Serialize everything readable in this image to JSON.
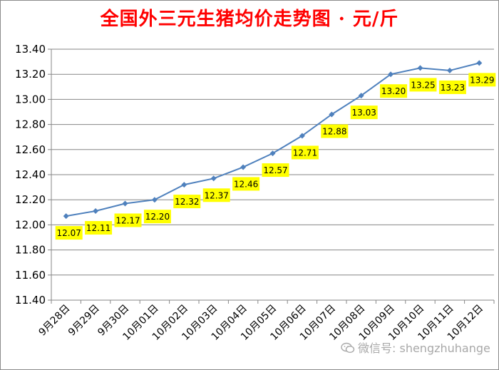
{
  "chart_data": {
    "type": "line",
    "title": "全国外三元生猪均价走势图 · 元/斤",
    "categories": [
      "9月28日",
      "9月29日",
      "9月30日",
      "10月01日",
      "10月02日",
      "10月03日",
      "10月04日",
      "10月05日",
      "10月06日",
      "10月07日",
      "10月08日",
      "10月09日",
      "10月10日",
      "10月11日",
      "10月12日"
    ],
    "series": [
      {
        "values": [
          12.07,
          12.11,
          12.17,
          12.2,
          12.32,
          12.37,
          12.46,
          12.57,
          12.71,
          12.88,
          13.03,
          13.2,
          13.25,
          13.23,
          13.29
        ]
      }
    ],
    "data_labels": [
      "12.07",
      "12.11",
      "12.17",
      "12.20",
      "12.32",
      "12.37",
      "12.46",
      "12.57",
      "12.71",
      "12.88",
      "13.03",
      "13.20",
      "13.25",
      "13.23",
      "13.29"
    ],
    "y_ticks": [
      "11.40",
      "11.60",
      "11.80",
      "12.00",
      "12.20",
      "12.40",
      "12.60",
      "12.80",
      "13.00",
      "13.20",
      "13.40"
    ],
    "ylim": [
      11.4,
      13.4
    ],
    "grid": "horizontal",
    "legend": "none",
    "colors": {
      "line": "#4f81bd",
      "label_bg": "#ffff00",
      "title": "#ff0000"
    }
  },
  "watermark": {
    "icon": "wechat-icon",
    "text": "微信号: shengzhuhange"
  }
}
